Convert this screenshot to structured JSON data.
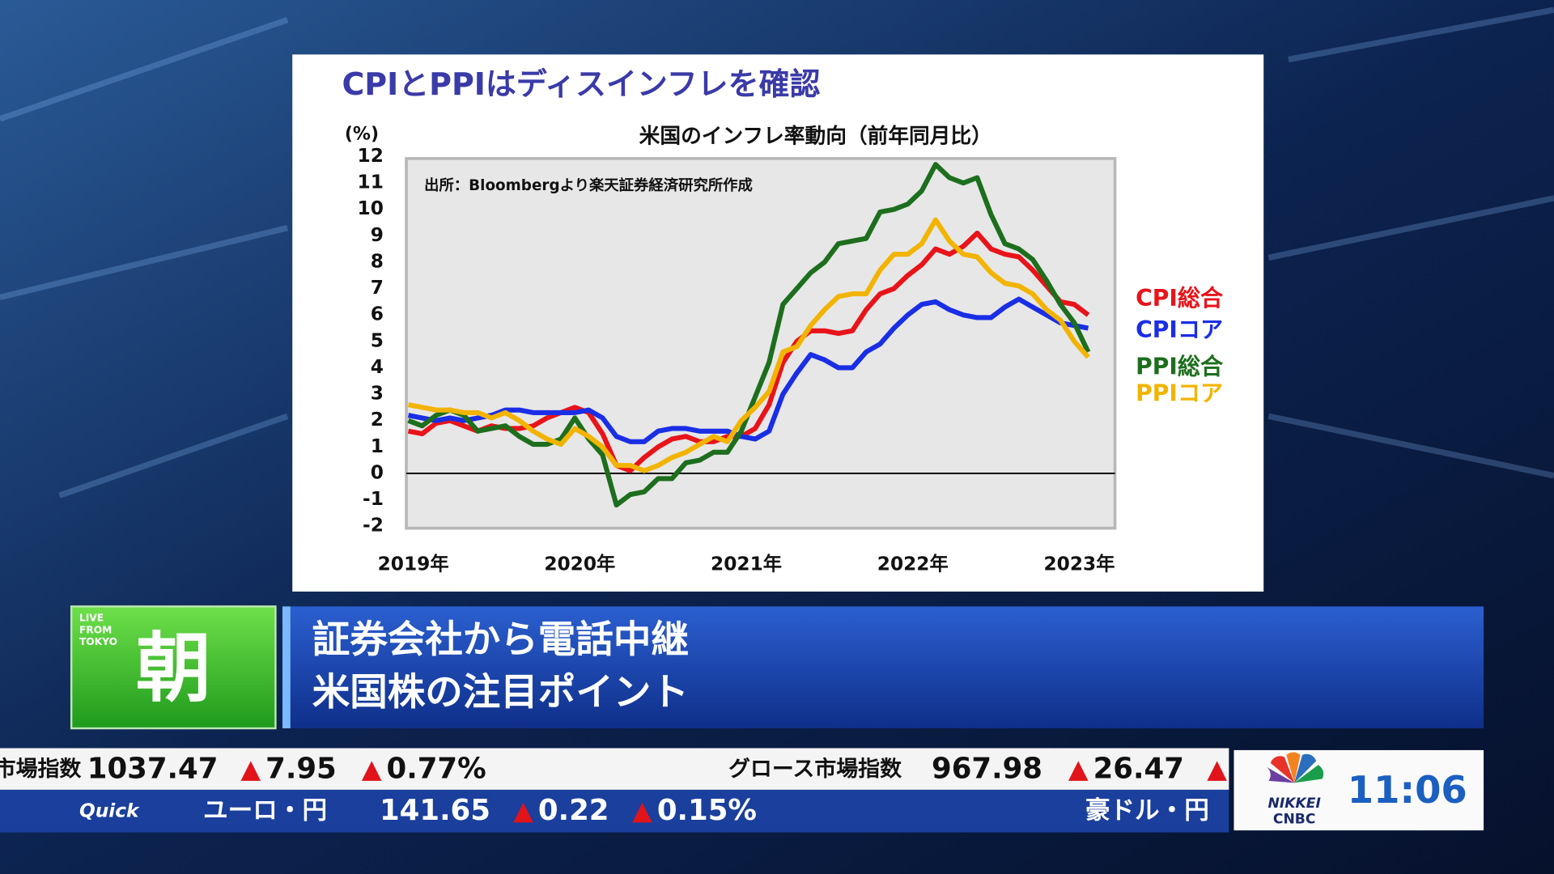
{
  "slide_title": "CPIとPPIはディスインフレを確認",
  "chart_data": {
    "type": "line",
    "title": "米国のインフレ率動向（前年同月比）",
    "y_label": "(%)",
    "annotation": "出所：Bloombergより楽天証券経済研究所作成",
    "categories": [
      "2019年",
      null,
      null,
      null,
      null,
      null,
      null,
      null,
      null,
      null,
      null,
      null,
      "2020年",
      null,
      null,
      null,
      null,
      null,
      null,
      null,
      null,
      null,
      null,
      null,
      "2021年",
      null,
      null,
      null,
      null,
      null,
      null,
      null,
      null,
      null,
      null,
      null,
      "2022年",
      null,
      null,
      null,
      null,
      null,
      null,
      null,
      null,
      null,
      null,
      null,
      "2023年",
      null
    ],
    "series": [
      {
        "name": "CPI総合",
        "color": "#e8141a",
        "values": [
          1.6,
          1.5,
          1.9,
          2.0,
          1.8,
          1.6,
          1.8,
          1.7,
          1.7,
          1.8,
          2.1,
          2.3,
          2.5,
          2.3,
          1.5,
          0.3,
          0.1,
          0.6,
          1.0,
          1.3,
          1.4,
          1.2,
          1.2,
          1.4,
          1.4,
          1.7,
          2.6,
          4.2,
          5.0,
          5.4,
          5.4,
          5.3,
          5.4,
          6.2,
          6.8,
          7.0,
          7.5,
          7.9,
          8.5,
          8.3,
          8.6,
          9.1,
          8.5,
          8.3,
          8.2,
          7.7,
          7.1,
          6.5,
          6.4,
          6.0
        ]
      },
      {
        "name": "CPIコア",
        "color": "#1a2ee6",
        "values": [
          2.2,
          2.1,
          2.0,
          2.1,
          2.0,
          2.1,
          2.2,
          2.4,
          2.4,
          2.3,
          2.3,
          2.3,
          2.3,
          2.4,
          2.1,
          1.4,
          1.2,
          1.2,
          1.6,
          1.7,
          1.7,
          1.6,
          1.6,
          1.6,
          1.4,
          1.3,
          1.6,
          3.0,
          3.8,
          4.5,
          4.3,
          4.0,
          4.0,
          4.6,
          4.9,
          5.5,
          6.0,
          6.4,
          6.5,
          6.2,
          6.0,
          5.9,
          5.9,
          6.3,
          6.6,
          6.3,
          6.0,
          5.7,
          5.6,
          5.5
        ]
      },
      {
        "name": "PPI総合",
        "color": "#1d6e1d",
        "values": [
          2.0,
          1.8,
          2.2,
          2.4,
          2.2,
          1.6,
          1.7,
          1.8,
          1.4,
          1.1,
          1.1,
          1.3,
          2.1,
          1.3,
          0.7,
          -1.2,
          -0.8,
          -0.7,
          -0.2,
          -0.2,
          0.4,
          0.5,
          0.8,
          0.8,
          1.6,
          2.9,
          4.2,
          6.4,
          7.0,
          7.6,
          8.0,
          8.7,
          8.8,
          8.9,
          9.9,
          10.0,
          10.2,
          10.7,
          11.7,
          11.2,
          11.0,
          11.2,
          9.8,
          8.7,
          8.5,
          8.1,
          7.3,
          6.4,
          5.7,
          4.6
        ]
      },
      {
        "name": "PPIコア",
        "color": "#f2b400",
        "values": [
          2.6,
          2.5,
          2.4,
          2.4,
          2.3,
          2.3,
          2.1,
          2.3,
          2.0,
          1.6,
          1.3,
          1.1,
          1.7,
          1.4,
          1.0,
          0.3,
          0.3,
          0.1,
          0.3,
          0.6,
          0.8,
          1.1,
          1.4,
          1.2,
          2.0,
          2.5,
          3.1,
          4.6,
          4.8,
          5.6,
          6.2,
          6.7,
          6.8,
          6.8,
          7.7,
          8.3,
          8.3,
          8.7,
          9.6,
          8.8,
          8.3,
          8.2,
          7.6,
          7.2,
          7.1,
          6.8,
          6.2,
          5.8,
          5.0,
          4.4
        ]
      }
    ],
    "ylim": [
      -2,
      12
    ],
    "yticks": [
      -2,
      -1,
      0,
      1,
      2,
      3,
      4,
      5,
      6,
      7,
      8,
      9,
      10,
      11,
      12
    ],
    "grid": false
  },
  "banner": {
    "badge": [
      "LIVE",
      "FROM",
      "TOKYO"
    ],
    "program": "朝",
    "lines": [
      "証券会社から電話中継",
      "米国株の注目ポイント"
    ]
  },
  "ticker": {
    "row1": [
      {
        "name": "市場指数",
        "value": "1037.47",
        "change": "7.95",
        "pct": "0.77%"
      },
      {
        "name": "グロース市場指数",
        "value": "967.98",
        "change": "26.47"
      }
    ],
    "source": "Quick",
    "row2": [
      {
        "name": "ユーロ・円",
        "value": "141.65",
        "change": "0.22",
        "pct": "0.15%"
      },
      {
        "name": "豪ドル・円"
      }
    ]
  },
  "logo": [
    "NIKKEI",
    "CNBC"
  ],
  "clock": "11:06"
}
